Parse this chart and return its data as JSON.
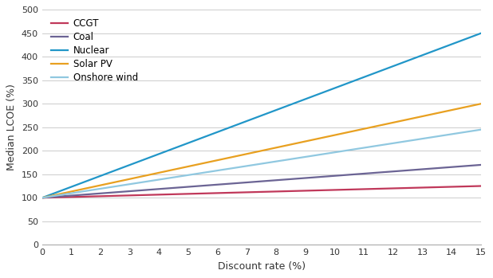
{
  "xlabel": "Discount rate (%)",
  "ylabel": "Median LCOE (%)",
  "xlim": [
    0,
    15
  ],
  "ylim": [
    0,
    500
  ],
  "yticks": [
    0,
    50,
    100,
    150,
    200,
    250,
    300,
    350,
    400,
    450,
    500
  ],
  "xticks": [
    0,
    1,
    2,
    3,
    4,
    5,
    6,
    7,
    8,
    9,
    10,
    11,
    12,
    13,
    14,
    15
  ],
  "series": {
    "CCGT": {
      "color": "#c0385a",
      "slope": 1.667,
      "intercept": 100
    },
    "Coal": {
      "color": "#6b6494",
      "slope": 4.667,
      "intercept": 100
    },
    "Nuclear": {
      "color": "#2196c8",
      "slope": 23.333,
      "intercept": 100
    },
    "Solar PV": {
      "color": "#e8a020",
      "slope": 13.333,
      "intercept": 100
    },
    "Onshore wind": {
      "color": "#90c8e0",
      "slope": 9.667,
      "intercept": 100
    }
  },
  "legend_order": [
    "CCGT",
    "Coal",
    "Nuclear",
    "Solar PV",
    "Onshore wind"
  ],
  "grid_color": "#cccccc",
  "background_color": "#ffffff",
  "line_width": 1.6
}
